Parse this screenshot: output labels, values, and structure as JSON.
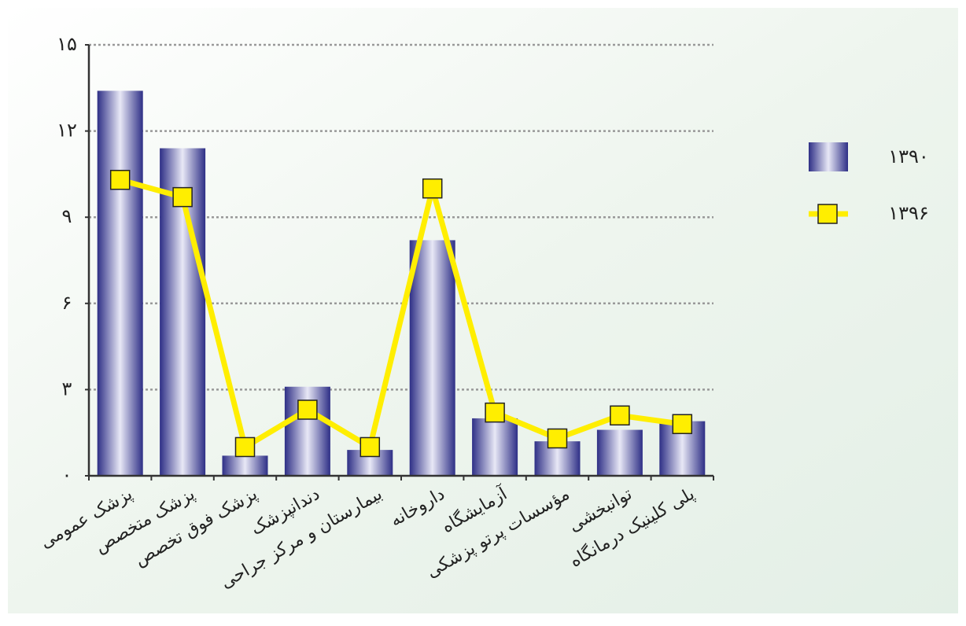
{
  "chart_data": {
    "type": "bar_line",
    "categories": [
      "پزشک عمومی",
      "پزشک متخصص",
      "پزشک فوق تخصص",
      "دندانپزشک",
      "بیمارستان و مرکز جراحی",
      "داروخانه",
      "آزمایشگاه",
      "مؤسسات پرتو پزشکی",
      "توانبخشی",
      "پلی کلینیک درمانگاه"
    ],
    "series": [
      {
        "name": "۱۳۹۰",
        "type": "bar",
        "color": "#2e2f86",
        "values": [
          13.4,
          11.4,
          0.7,
          3.1,
          0.9,
          8.2,
          2.0,
          1.2,
          1.6,
          1.9
        ]
      },
      {
        "name": "۱۳۹۶",
        "type": "line",
        "color": "#ffee00",
        "values": [
          10.3,
          9.7,
          1.0,
          2.3,
          1.0,
          10.0,
          2.2,
          1.3,
          2.1,
          1.8
        ]
      }
    ],
    "ylim": [
      0,
      15
    ],
    "yticks": [
      {
        "value": 0,
        "label": "۰"
      },
      {
        "value": 3,
        "label": "۳"
      },
      {
        "value": 6,
        "label": "۶"
      },
      {
        "value": 9,
        "label": "۹"
      },
      {
        "value": 12,
        "label": "۱۲"
      },
      {
        "value": 15,
        "label": "۱۵"
      }
    ],
    "grid": true
  }
}
